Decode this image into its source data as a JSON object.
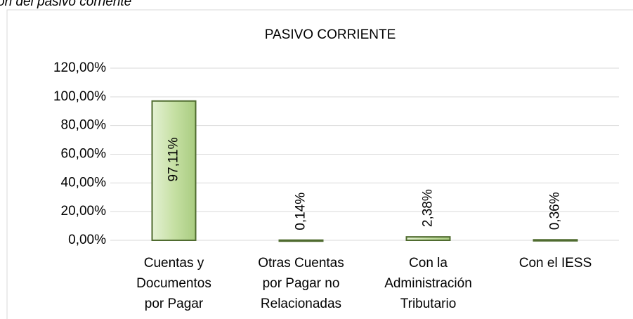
{
  "caption": "ón del pasivo corriente",
  "chart_data": {
    "type": "bar",
    "title": "PASIVO CORRIENTE",
    "categories": [
      [
        "Cuentas y",
        "Documentos",
        "por Pagar"
      ],
      [
        "Otras Cuentas",
        "por Pagar no",
        "Relacionadas"
      ],
      [
        "Con la",
        "Administración",
        "Tributario"
      ],
      [
        "Con el IESS"
      ]
    ],
    "values": [
      97.11,
      0.14,
      2.38,
      0.36
    ],
    "value_labels": [
      "97,11%",
      "0,14%",
      "2,38%",
      "0,36%"
    ],
    "color": "#c6e0a4",
    "ylim": [
      0,
      120
    ],
    "yticks": [
      {
        "value": 0,
        "label": "0,00%"
      },
      {
        "value": 20,
        "label": "20,00%"
      },
      {
        "value": 40,
        "label": "40,00%"
      },
      {
        "value": 60,
        "label": "60,00%"
      },
      {
        "value": 80,
        "label": "80,00%"
      },
      {
        "value": 100,
        "label": "100,00%"
      },
      {
        "value": 120,
        "label": "120,00%"
      }
    ],
    "grid": true
  }
}
